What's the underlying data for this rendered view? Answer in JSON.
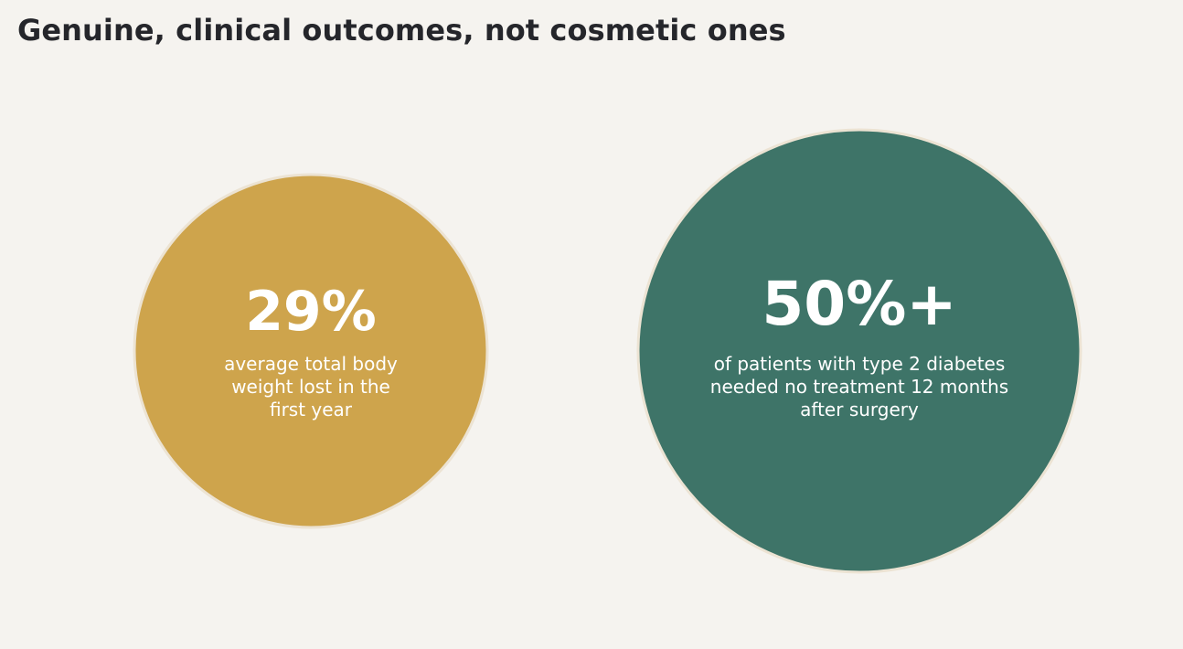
{
  "title": "Genuine, clinical outcomes, not cosmetic ones",
  "chart_data": {
    "type": "bubble",
    "title": "Genuine, clinical outcomes, not cosmetic ones",
    "items": [
      {
        "value_label": "29%",
        "value": 29,
        "caption_lines": [
          "average total body",
          "weight lost in the",
          "first year"
        ],
        "color": "#cea44c"
      },
      {
        "value_label": "50%+",
        "value": 50,
        "caption_lines": [
          "of patients with type 2 diabetes",
          "needed no treatment 12 months",
          "after surgery"
        ],
        "color": "#3e7468"
      }
    ]
  }
}
